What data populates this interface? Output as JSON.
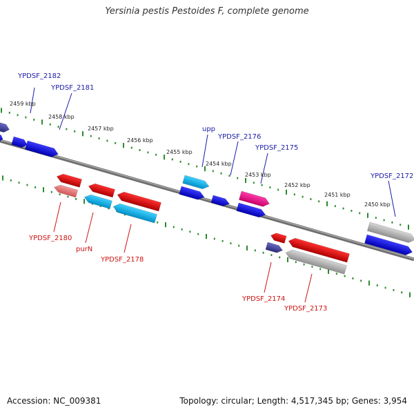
{
  "title": "Yersinia pestis Pestoides F, complete genome",
  "footer": {
    "accession": "Accession: NC_009381",
    "summary": "Topology: circular; Length: 4,517,345 bp; Genes: 3,954"
  },
  "colors": {
    "forward_label": "#1a1aa8",
    "reverse_label": "#cc1111",
    "tick": "#2a8a2a",
    "backbone": "#808080"
  },
  "kbp_ticks": [
    "2459 kbp",
    "2458 kbp",
    "2457 kbp",
    "2456 kbp",
    "2455 kbp",
    "2454 kbp",
    "2453 kbp",
    "2452 kbp",
    "2451 kbp",
    "2450 kbp"
  ],
  "forward_labels": [
    "YPDSF_2182",
    "YPDSF_2181",
    "upp",
    "YPDSF_2176",
    "YPDSF_2175",
    "YPDSF_2172"
  ],
  "reverse_labels": [
    "YPDSF_2180",
    "purN",
    "YPDSF_2178",
    "YPDSF_2174",
    "YPDSF_2173"
  ]
}
